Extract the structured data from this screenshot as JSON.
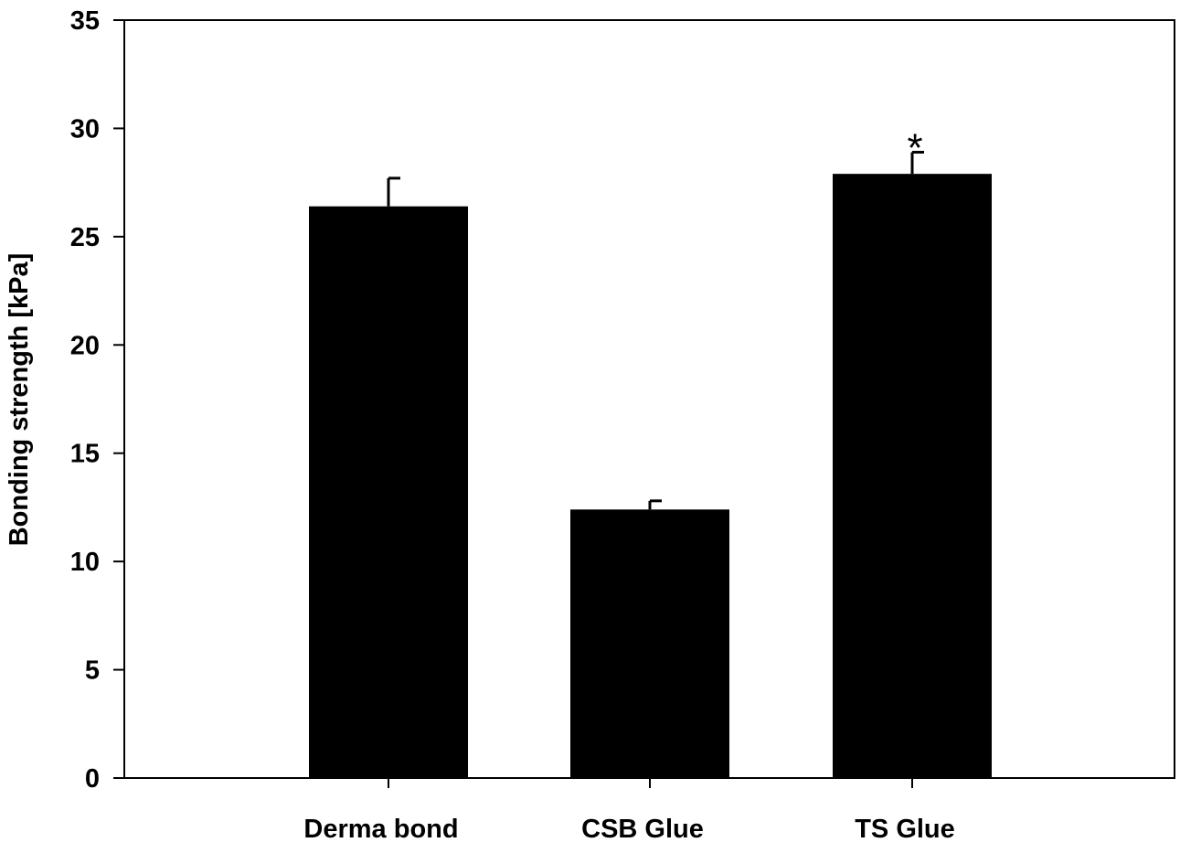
{
  "chart_data": {
    "type": "bar",
    "categories": [
      "Derma bond",
      "CSB Glue",
      "TS Glue"
    ],
    "values": [
      26.4,
      12.4,
      27.9
    ],
    "errors": [
      1.3,
      0.4,
      1.0
    ],
    "annotations": [
      "",
      "",
      "*"
    ],
    "title": "",
    "xlabel": "",
    "ylabel": "Bonding strength [kPa]",
    "ylim": [
      0,
      35
    ],
    "yticks": [
      "0",
      "5",
      "10",
      "15",
      "20",
      "25",
      "30",
      "35"
    ],
    "bar_color": "#000000",
    "grid": false,
    "legend": "none"
  }
}
